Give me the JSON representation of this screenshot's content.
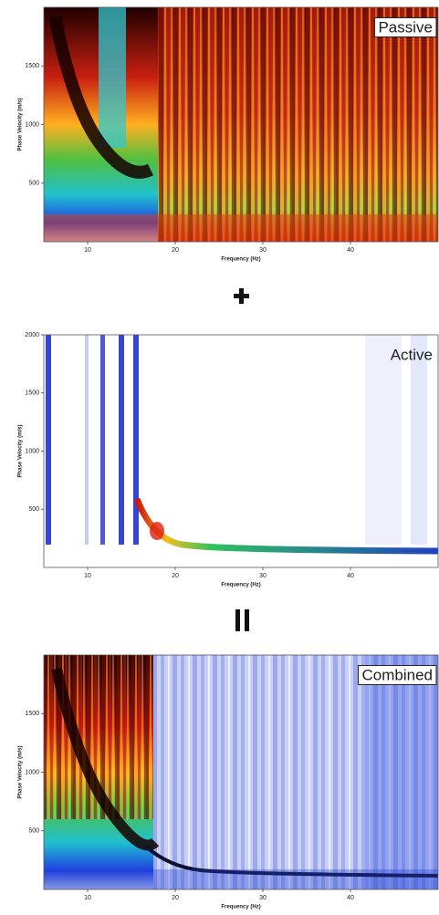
{
  "chart_data": [
    {
      "type": "heatmap",
      "label": "Passive",
      "x_label": "Frequency (Hz)",
      "y_label": "Phase Velocity (m/s)",
      "xlim": [
        5,
        50
      ],
      "ylim": [
        0,
        2000
      ],
      "xticks": [
        10,
        20,
        30,
        40
      ],
      "yticks": [
        500,
        1000,
        1500
      ]
    },
    {
      "type": "heatmap",
      "label": "Active",
      "x_label": "Frequency (Hz)",
      "y_label": "Phase Velocity (m/s)",
      "xlim": [
        5,
        50
      ],
      "ylim": [
        0,
        2000
      ],
      "xticks": [
        10,
        20,
        30,
        40
      ],
      "yticks": [
        500,
        1000,
        1500,
        2000
      ]
    },
    {
      "type": "heatmap",
      "label": "Combined",
      "x_label": "Frequency (Hz)",
      "y_label": "Phase Velocity (m/s)",
      "xlim": [
        5,
        50
      ],
      "ylim": [
        0,
        2000
      ],
      "xticks": [
        10,
        20,
        30,
        40
      ],
      "yticks": [
        500,
        1000,
        1500
      ]
    }
  ]
}
